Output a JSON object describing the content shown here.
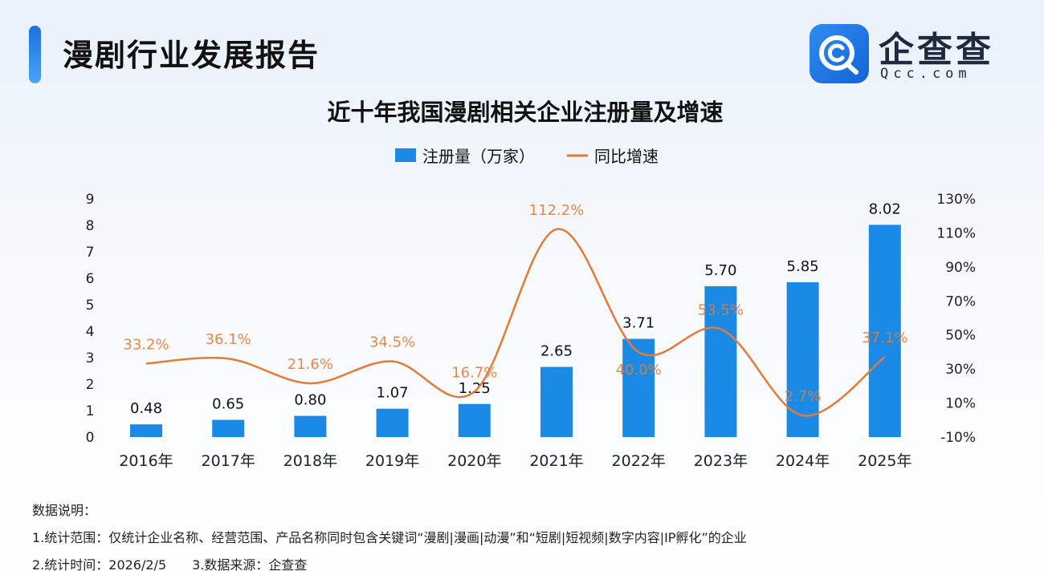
{
  "header": {
    "title": "漫剧行业发展报告",
    "logo_name": "企查查",
    "logo_domain": "Qcc.com"
  },
  "colors": {
    "bar": "#1a8ae5",
    "line": "#e07b39",
    "label_pct": "#e07b39",
    "text": "#111111"
  },
  "chart_data": {
    "type": "bar+line",
    "title": "近十年我国漫剧相关企业注册量及增速",
    "legend": {
      "position": "top-center"
    },
    "categories": [
      "2016年",
      "2017年",
      "2018年",
      "2019年",
      "2020年",
      "2021年",
      "2022年",
      "2023年",
      "2024年",
      "2025年"
    ],
    "series": [
      {
        "name": "注册量（万家）",
        "type": "bar",
        "axis": "left",
        "values": [
          0.48,
          0.65,
          0.8,
          1.07,
          1.25,
          2.65,
          3.71,
          5.7,
          5.85,
          8.02
        ],
        "labels": [
          "0.48",
          "0.65",
          "0.80",
          "1.07",
          "1.25",
          "2.65",
          "3.71",
          "5.70",
          "5.85",
          "8.02"
        ]
      },
      {
        "name": "同比增速",
        "type": "line",
        "axis": "right",
        "smooth": true,
        "values": [
          33.2,
          36.1,
          21.6,
          34.5,
          16.7,
          112.2,
          40.0,
          53.5,
          2.7,
          37.1
        ],
        "labels": [
          "33.2%",
          "36.1%",
          "21.6%",
          "34.5%",
          "16.7%",
          "112.2%",
          "40.0%",
          "53.5%",
          "2.7%",
          "37.1%"
        ]
      }
    ],
    "y_left": {
      "min": 0,
      "max": 9,
      "ticks": [
        "0",
        "1",
        "2",
        "3",
        "4",
        "5",
        "6",
        "7",
        "8",
        "9"
      ]
    },
    "y_right": {
      "min": -10,
      "max": 130,
      "ticks": [
        "-10%",
        "10%",
        "30%",
        "50%",
        "70%",
        "90%",
        "110%",
        "130%"
      ]
    },
    "grid": false
  },
  "notes": {
    "heading": "数据说明：",
    "line1": "1.统计范围：仅统计企业名称、经营范围、产品名称同时包含关键词“漫剧|漫画|动漫”和“短剧|短视频|数字内容|IP孵化”的企业",
    "line2": "2.统计时间：2026/2/5　　3.数据来源：企查查"
  }
}
